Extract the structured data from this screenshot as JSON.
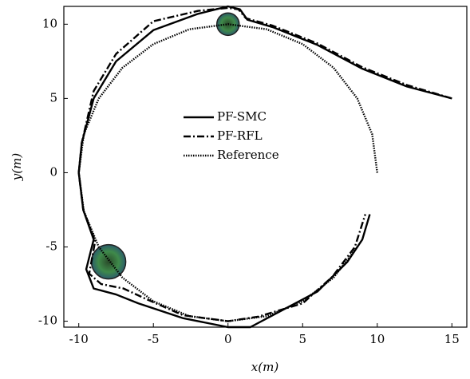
{
  "chart_data": {
    "type": "line",
    "xlabel": "x(m)",
    "ylabel": "y(m)",
    "xlim": [
      -11,
      16
    ],
    "ylim": [
      -10.4,
      11.2
    ],
    "xticks": [
      -10,
      -5,
      0,
      5,
      10,
      15
    ],
    "yticks": [
      -10,
      -5,
      0,
      5,
      10
    ],
    "series": [
      {
        "name": "PF-SMC",
        "color": "#000000",
        "style": "solid",
        "x": [
          15,
          12,
          9,
          6,
          3,
          1.3,
          0.8,
          0,
          -2,
          -5,
          -7.5,
          -9,
          -9.8,
          -10,
          -9.7,
          -9,
          -9.5,
          -9,
          -7.5,
          -6,
          -3,
          0,
          1.5,
          3,
          6,
          8,
          9,
          9.5
        ],
        "y": [
          5,
          5.8,
          7,
          8.6,
          9.8,
          10.3,
          11,
          11.2,
          10.7,
          9.6,
          7.5,
          5,
          2,
          0,
          -2.5,
          -4.5,
          -6.5,
          -7.8,
          -8.2,
          -8.8,
          -9.8,
          -10.4,
          -10.4,
          -9.6,
          -8,
          -6,
          -4.5,
          -2.8
        ]
      },
      {
        "name": "PF-RFL",
        "color": "#000000",
        "style": "dashdot",
        "x": [
          15,
          12,
          9,
          6,
          3,
          1.2,
          0.7,
          0,
          -2,
          -5,
          -7.5,
          -9,
          -9.8,
          -10,
          -9.7,
          -8.9,
          -9.3,
          -8.5,
          -7,
          -5.5,
          -3,
          0,
          2,
          5,
          7,
          8.5,
          9.2
        ],
        "y": [
          5,
          5.9,
          7.1,
          8.7,
          9.9,
          10.4,
          11,
          11.1,
          10.9,
          10.2,
          8,
          5.5,
          2,
          0,
          -2.5,
          -4.6,
          -6.8,
          -7.5,
          -7.8,
          -8.5,
          -9.6,
          -10,
          -9.7,
          -8.8,
          -7,
          -5,
          -2.8
        ]
      },
      {
        "name": "Reference",
        "color": "#000000",
        "style": "dotted",
        "x": [
          10,
          9.66,
          8.66,
          7.07,
          5,
          2.59,
          0,
          -2.59,
          -5,
          -7.07,
          -8.66,
          -9.66,
          -10,
          -9.66,
          -8.66,
          -7.07,
          -5,
          -2.59,
          0,
          2.59,
          5,
          7.07,
          8.66
        ],
        "y": [
          0,
          2.59,
          5,
          7.07,
          8.66,
          9.66,
          10,
          9.66,
          8.66,
          7.07,
          5,
          2.59,
          0,
          -2.59,
          -5,
          -7.07,
          -8.66,
          -9.66,
          -10,
          -9.66,
          -8.66,
          -7.07,
          -5
        ]
      }
    ],
    "obstacles": [
      {
        "x": 0,
        "y": 10,
        "r": 0.75
      },
      {
        "x": -8,
        "y": -6,
        "r": 1.15
      }
    ]
  }
}
